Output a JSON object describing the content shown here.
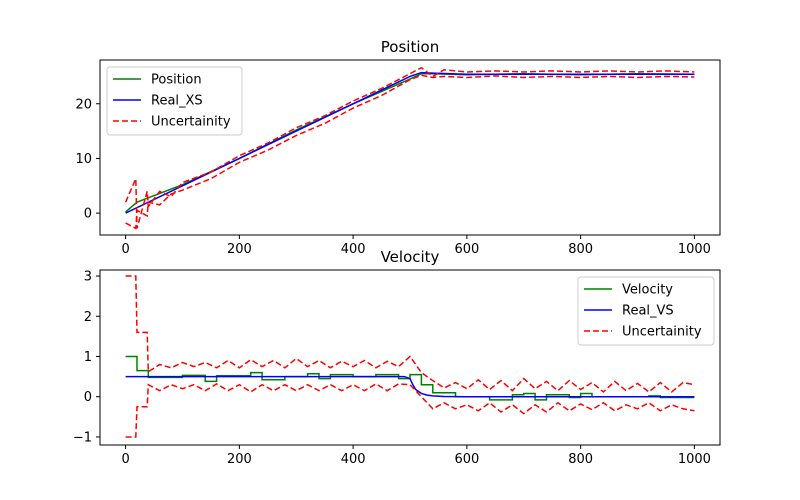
{
  "chart_data": [
    {
      "type": "line",
      "title": "Position",
      "xlabel": "",
      "ylabel": "",
      "xlim": [
        -45,
        1045
      ],
      "ylim": [
        -4,
        28
      ],
      "xticks": [
        0,
        200,
        400,
        600,
        800,
        1000
      ],
      "yticks": [
        0,
        10,
        20
      ],
      "grid": false,
      "legend_position": "top-left",
      "series": [
        {
          "name": "Position",
          "color": "#008000",
          "style": "solid",
          "x": [
            0,
            20,
            40,
            100,
            200,
            300,
            400,
            500,
            520,
            540,
            600,
            700,
            800,
            900,
            1000
          ],
          "y": [
            0.2,
            2,
            2.8,
            5.2,
            10,
            15.2,
            20,
            24.5,
            25.5,
            25.5,
            25.3,
            25.5,
            25.3,
            25.5,
            25.4
          ]
        },
        {
          "name": "Real_XS",
          "color": "#0000ff",
          "style": "solid",
          "x": [
            0,
            100,
            200,
            300,
            400,
            500,
            520,
            540,
            600,
            700,
            800,
            900,
            1000
          ],
          "y": [
            0,
            5,
            10,
            15,
            20,
            25,
            25.7,
            25.6,
            25.4,
            25.4,
            25.4,
            25.4,
            25.4
          ]
        },
        {
          "name": "Uncertainity",
          "color": "#ff0000",
          "style": "dashed",
          "x": [
            0,
            18,
            20,
            38,
            40,
            60,
            80,
            100,
            150,
            200,
            250,
            300,
            350,
            400,
            450,
            500,
            520,
            540,
            560,
            600,
            650,
            700,
            750,
            800,
            850,
            900,
            950,
            1000
          ],
          "y": [
            2,
            6.3,
            -2.8,
            4,
            1.2,
            4,
            3,
            5.6,
            7.5,
            10.5,
            12.8,
            15.6,
            17.8,
            20.5,
            22.8,
            25.5,
            26.6,
            25,
            26.2,
            25.8,
            26,
            25.8,
            26,
            25.8,
            26,
            25.8,
            26,
            25.8
          ]
        },
        {
          "name": "",
          "color": "#ff0000",
          "style": "dashed",
          "x": [
            0,
            18,
            20,
            38,
            40,
            60,
            80,
            100,
            150,
            200,
            250,
            300,
            350,
            400,
            450,
            500,
            520,
            540,
            560,
            600,
            650,
            700,
            750,
            800,
            850,
            900,
            950,
            1000
          ],
          "y": [
            -1.8,
            -2.8,
            0.5,
            -0.5,
            2,
            1.5,
            3.5,
            4.2,
            6.3,
            9.3,
            11.5,
            14.2,
            16.4,
            19.2,
            21.5,
            24.4,
            25.2,
            24.8,
            25,
            24.8,
            25.1,
            24.8,
            25,
            24.8,
            25,
            24.8,
            25,
            24.9
          ]
        }
      ]
    },
    {
      "type": "line",
      "title": "Velocity",
      "xlabel": "",
      "ylabel": "",
      "xlim": [
        -45,
        1045
      ],
      "ylim": [
        -1.2,
        3.15
      ],
      "xticks": [
        0,
        200,
        400,
        600,
        800,
        1000
      ],
      "yticks": [
        -1,
        0,
        1,
        2,
        3
      ],
      "grid": false,
      "legend_position": "top-right",
      "series": [
        {
          "name": "Velocity",
          "color": "#008000",
          "style": "solid",
          "x": [
            0,
            20,
            20,
            40,
            40,
            100,
            100,
            140,
            140,
            160,
            160,
            220,
            220,
            240,
            240,
            280,
            280,
            320,
            320,
            340,
            340,
            360,
            360,
            400,
            400,
            440,
            440,
            480,
            480,
            500,
            500,
            520,
            520,
            540,
            540,
            580,
            580,
            620,
            620,
            640,
            640,
            680,
            680,
            700,
            700,
            720,
            720,
            740,
            740,
            780,
            780,
            800,
            800,
            820,
            820,
            880,
            880,
            920,
            920,
            940,
            940,
            1000
          ],
          "y": [
            1,
            1,
            0.65,
            0.65,
            0.48,
            0.48,
            0.53,
            0.53,
            0.38,
            0.38,
            0.52,
            0.52,
            0.6,
            0.6,
            0.42,
            0.42,
            0.5,
            0.5,
            0.57,
            0.57,
            0.45,
            0.45,
            0.55,
            0.55,
            0.5,
            0.5,
            0.55,
            0.55,
            0.45,
            0.45,
            0.55,
            0.55,
            0.3,
            0.3,
            0.1,
            0.1,
            0.0,
            0.0,
            0.0,
            0.0,
            -0.08,
            -0.08,
            0.05,
            0.05,
            0.08,
            0.08,
            -0.08,
            -0.08,
            0.05,
            0.05,
            -0.02,
            -0.02,
            0.08,
            0.08,
            0.0,
            0.0,
            0.0,
            0.0,
            0.02,
            0.02,
            -0.02,
            -0.02
          ]
        },
        {
          "name": "Real_VS",
          "color": "#0000ff",
          "style": "solid",
          "x": [
            0,
            490,
            500,
            505,
            510,
            520,
            530,
            540,
            560,
            600,
            1000
          ],
          "y": [
            0.5,
            0.5,
            0.45,
            0.3,
            0.18,
            0.08,
            0.04,
            0.02,
            0.005,
            0,
            0
          ]
        },
        {
          "name": "Uncertainity",
          "color": "#ff0000",
          "style": "dashed",
          "x": [
            0,
            18,
            20,
            38,
            40,
            60,
            80,
            100,
            120,
            140,
            160,
            180,
            200,
            220,
            240,
            260,
            280,
            300,
            320,
            340,
            360,
            380,
            400,
            420,
            440,
            460,
            480,
            500,
            520,
            540,
            560,
            580,
            600,
            620,
            640,
            660,
            680,
            700,
            720,
            740,
            760,
            780,
            800,
            820,
            840,
            860,
            880,
            900,
            920,
            940,
            960,
            980,
            1000
          ],
          "y": [
            3,
            3,
            1.6,
            1.6,
            0.62,
            0.8,
            0.72,
            0.85,
            0.75,
            0.85,
            0.72,
            0.9,
            0.72,
            0.92,
            0.75,
            0.9,
            0.72,
            0.95,
            0.75,
            0.9,
            0.72,
            0.88,
            0.75,
            0.9,
            0.72,
            0.88,
            0.75,
            1.0,
            0.6,
            0.4,
            0.22,
            0.35,
            0.2,
            0.42,
            0.18,
            0.4,
            0.15,
            0.45,
            0.2,
            0.38,
            0.15,
            0.4,
            0.18,
            0.35,
            0.12,
            0.38,
            0.15,
            0.33,
            0.12,
            0.35,
            0.12,
            0.35,
            0.3
          ]
        },
        {
          "name": "",
          "color": "#ff0000",
          "style": "dashed",
          "x": [
            0,
            18,
            20,
            38,
            40,
            60,
            80,
            100,
            120,
            140,
            160,
            180,
            200,
            220,
            240,
            260,
            280,
            300,
            320,
            340,
            360,
            380,
            400,
            420,
            440,
            460,
            480,
            500,
            520,
            540,
            560,
            580,
            600,
            620,
            640,
            660,
            680,
            700,
            720,
            740,
            760,
            780,
            800,
            820,
            840,
            860,
            880,
            900,
            920,
            940,
            960,
            980,
            1000
          ],
          "y": [
            -1,
            -1,
            -0.25,
            -0.25,
            0.3,
            0.15,
            0.3,
            0.2,
            0.3,
            0.15,
            0.32,
            0.15,
            0.3,
            0.12,
            0.3,
            0.15,
            0.3,
            0.15,
            0.3,
            0.15,
            0.3,
            0.15,
            0.3,
            0.15,
            0.32,
            0.15,
            0.32,
            0.3,
            0.0,
            -0.3,
            -0.15,
            -0.3,
            -0.2,
            -0.35,
            -0.15,
            -0.38,
            -0.2,
            -0.42,
            -0.2,
            -0.38,
            -0.15,
            -0.35,
            -0.18,
            -0.32,
            -0.15,
            -0.35,
            -0.2,
            -0.3,
            -0.15,
            -0.35,
            -0.2,
            -0.3,
            -0.35
          ]
        }
      ]
    }
  ]
}
